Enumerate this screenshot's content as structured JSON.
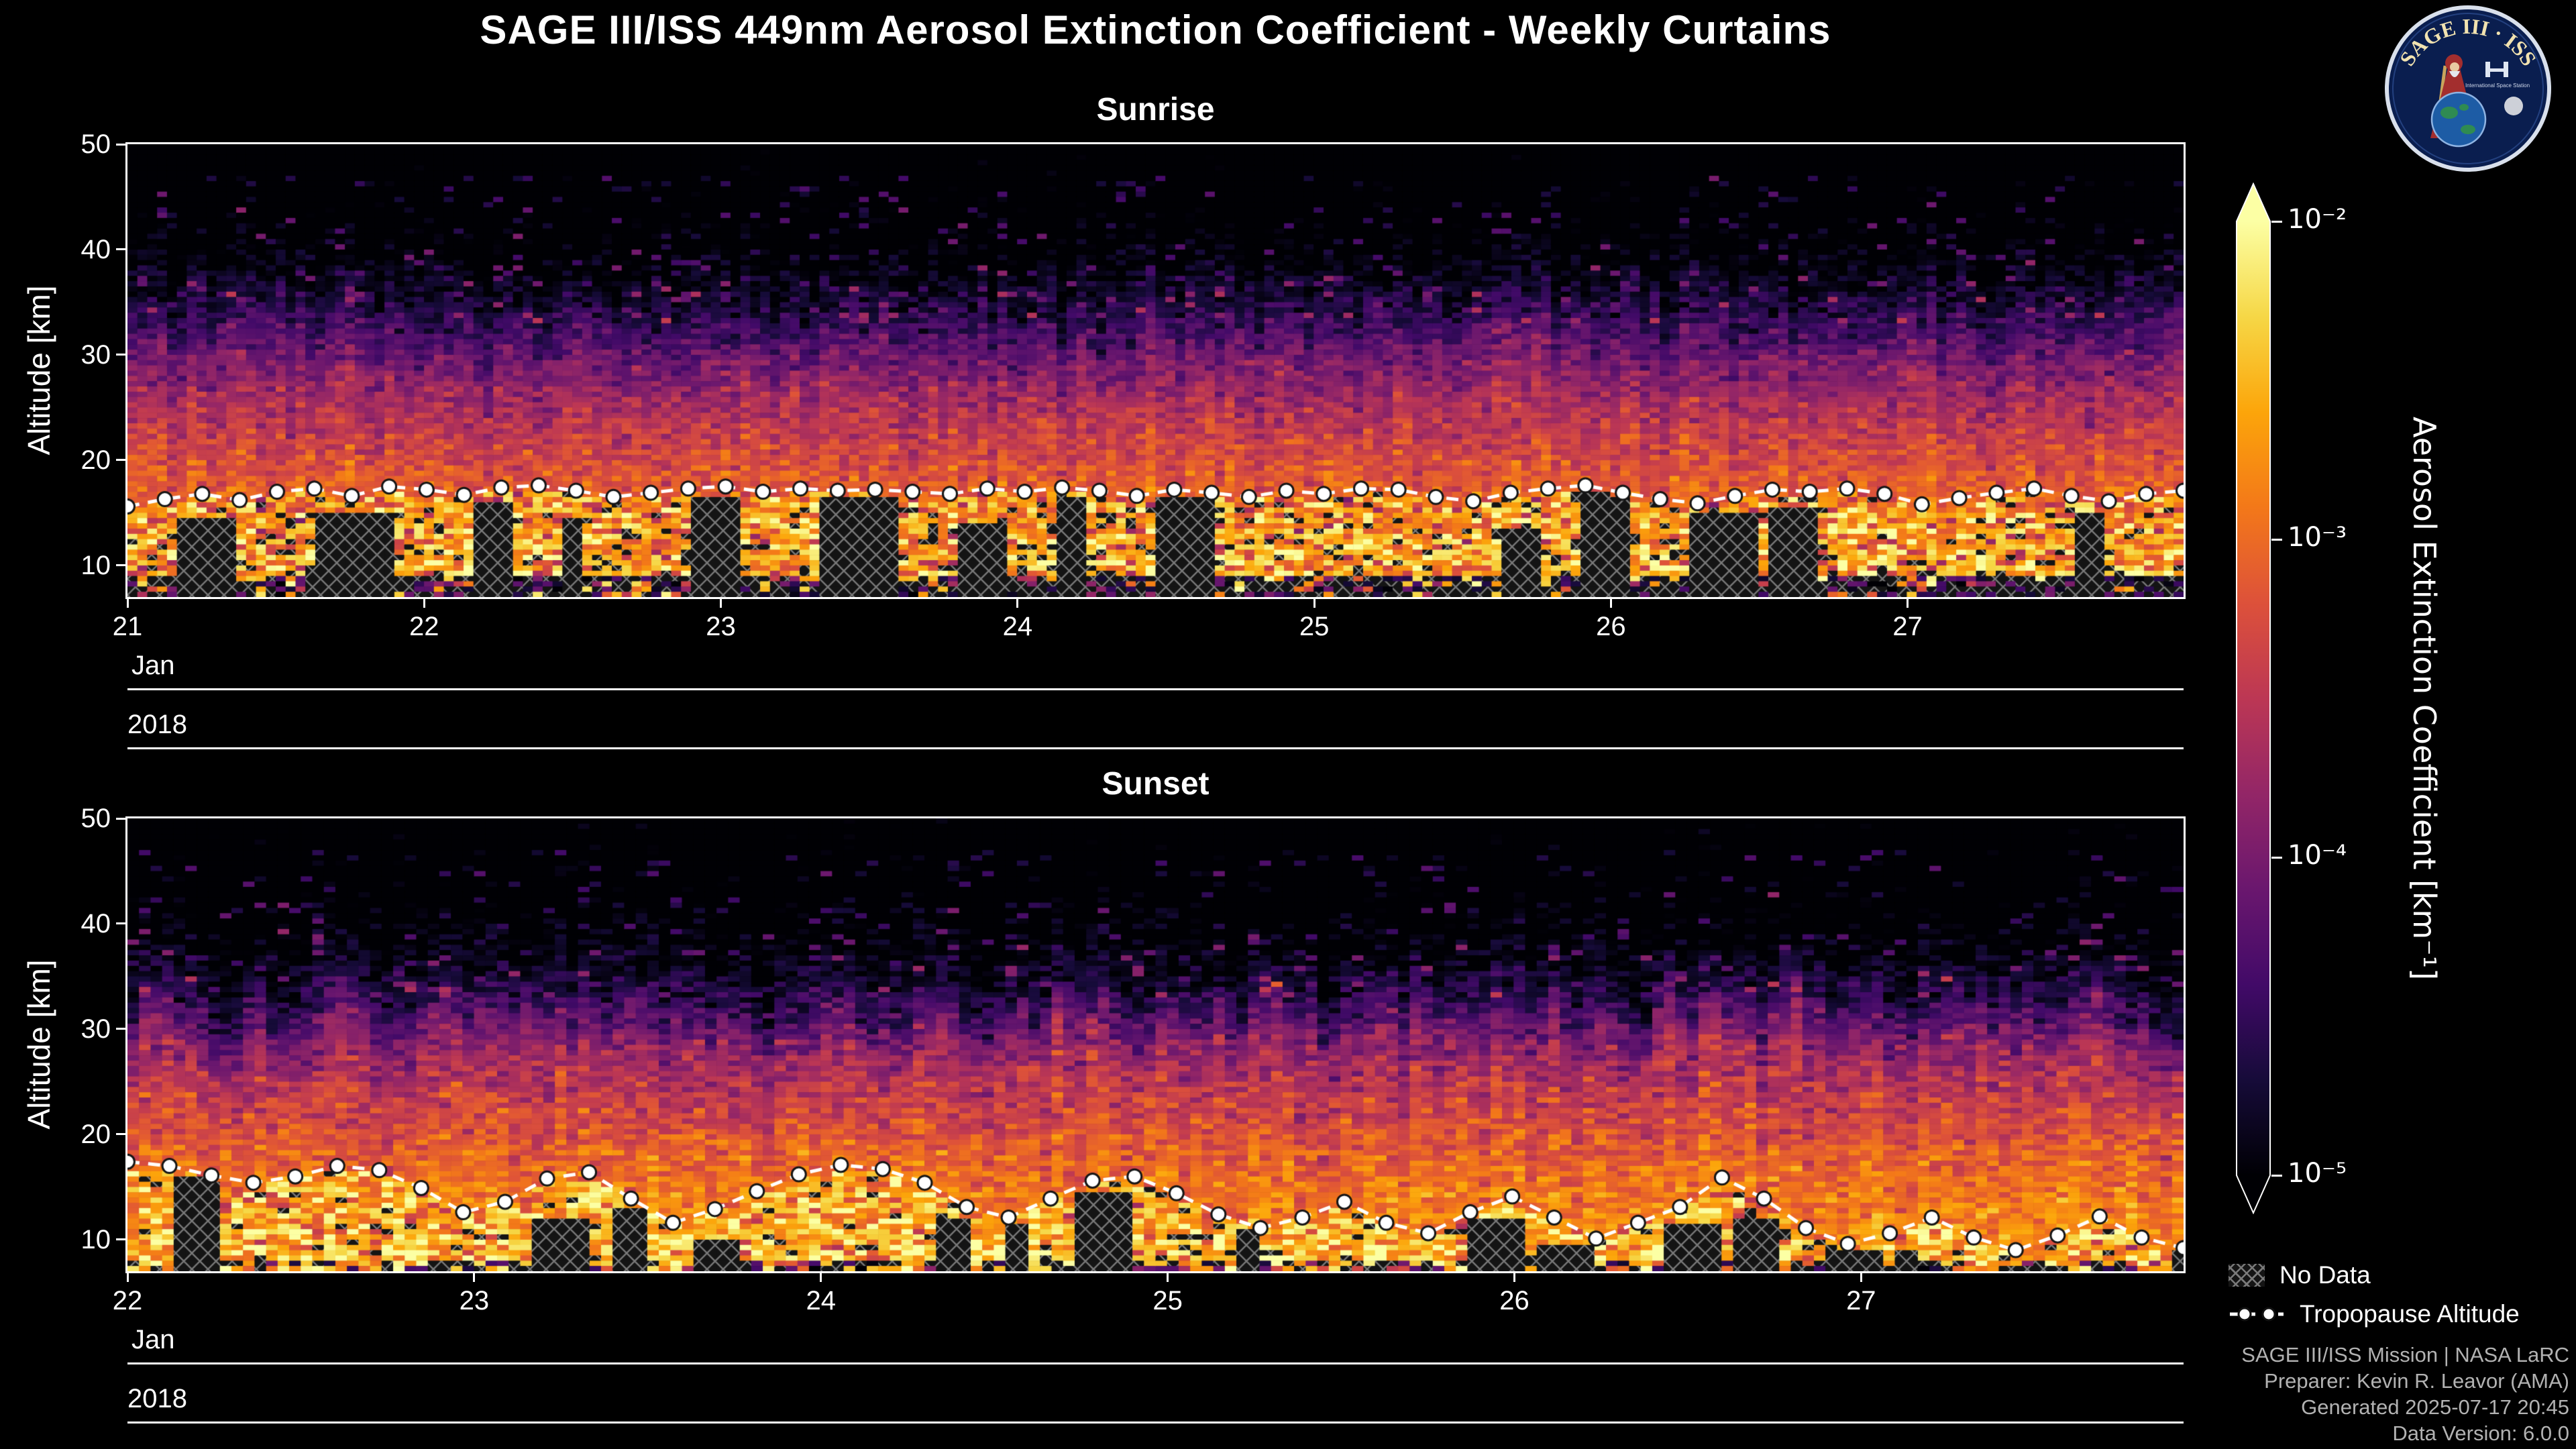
{
  "header": {
    "title": "SAGE III/ISS 449nm Aerosol Extinction Coefficient - Weekly Curtains"
  },
  "logo": {
    "title": "SAGE III · ISS",
    "subtitle": "International Space Station"
  },
  "colorbar": {
    "label": "Aerosol Extinction Coefficient [km⁻¹]",
    "ticks": [
      "10⁻²",
      "10⁻³",
      "10⁻⁴",
      "10⁻⁵"
    ],
    "tick_log10": [
      -2,
      -3,
      -4,
      -5
    ],
    "range_log10": [
      -5,
      -2
    ],
    "colormap": "inferno",
    "extend": "both"
  },
  "legend": {
    "no_data_label": "No Data",
    "tropopause_label": "Tropopause Altitude"
  },
  "footer": {
    "lines": [
      "SAGE III/ISS Mission | NASA LaRC",
      "Preparer: Kevin R. Leavor (AMA)",
      "Generated 2025-07-17 20:45",
      "Data Version: 6.0.0"
    ]
  },
  "chart_data": [
    {
      "type": "heatmap",
      "title": "Sunrise",
      "ylabel": "Altitude [km]",
      "y_range_km": [
        7,
        50
      ],
      "y_ticks": [
        10,
        20,
        30,
        40,
        50
      ],
      "x_range_days": [
        21,
        27.93
      ],
      "x_ticks": [
        21,
        22,
        23,
        24,
        25,
        26,
        27
      ],
      "month": "Jan",
      "year": "2018",
      "value_scale": "log10 aerosol extinction coefficient [km^-1], color range -5 to -2",
      "profile_log10_by_altitude_km": [
        [
          50,
          -5.45
        ],
        [
          44,
          -5.3
        ],
        [
          39,
          -5.05
        ],
        [
          35,
          -4.7
        ],
        [
          32,
          -4.35
        ],
        [
          30,
          -4.1
        ],
        [
          28,
          -3.9
        ],
        [
          25,
          -3.6
        ],
        [
          22,
          -3.4
        ],
        [
          19,
          -3.2
        ],
        [
          16,
          -3.05
        ],
        [
          12,
          -2.95
        ],
        [
          7,
          -2.9
        ]
      ],
      "tropopause_altitude_km": [
        15.6,
        16.3,
        16.8,
        16.2,
        17.0,
        17.3,
        16.6,
        17.5,
        17.2,
        16.7,
        17.4,
        17.6,
        17.1,
        16.5,
        16.9,
        17.3,
        17.5,
        17.0,
        17.3,
        17.1,
        17.2,
        17.0,
        16.8,
        17.3,
        17.0,
        17.4,
        17.1,
        16.6,
        17.2,
        16.9,
        16.5,
        17.1,
        16.8,
        17.3,
        17.2,
        16.5,
        16.1,
        16.9,
        17.3,
        17.6,
        16.9,
        16.3,
        15.9,
        16.6,
        17.2,
        17.0,
        17.3,
        16.8,
        15.8,
        16.4,
        16.9,
        17.3,
        16.6,
        16.1,
        16.8,
        17.1
      ],
      "render": {
        "seed": 1337,
        "columns_per_day": 30,
        "rows_per_km": 2,
        "noise_sigma": 0.18,
        "col_jitter_km": 1.4,
        "no_data_run_probability": 0.12,
        "no_data_run_length": [
          2,
          9
        ],
        "scatter_no_data": 0.1,
        "cloud_probability": 0.2,
        "cloud_log10": -2.45,
        "bottom": {
          "below_km": 9.0,
          "hatch_p": 0.45,
          "dark_p": 0.38
        }
      }
    },
    {
      "type": "heatmap",
      "title": "Sunset",
      "ylabel": "Altitude [km]",
      "y_range_km": [
        7,
        50
      ],
      "y_ticks": [
        10,
        20,
        30,
        40,
        50
      ],
      "x_range_days": [
        22,
        27.93
      ],
      "x_ticks": [
        22,
        23,
        24,
        25,
        26,
        27
      ],
      "month": "Jan",
      "year": "2018",
      "value_scale": "log10 aerosol extinction coefficient [km^-1], color range -5 to -2",
      "profile_log10_by_altitude_km": [
        [
          50,
          -5.45
        ],
        [
          42,
          -5.3
        ],
        [
          37,
          -5.0
        ],
        [
          33,
          -4.6
        ],
        [
          31,
          -4.3
        ],
        [
          29,
          -3.95
        ],
        [
          26,
          -3.65
        ],
        [
          22,
          -3.35
        ],
        [
          18,
          -3.1
        ],
        [
          14,
          -2.9
        ],
        [
          10,
          -2.75
        ],
        [
          7,
          -2.7
        ]
      ],
      "tropopause_altitude_km": [
        17.4,
        17.0,
        16.1,
        15.4,
        16.0,
        17.0,
        16.6,
        14.9,
        12.6,
        13.6,
        15.8,
        16.4,
        13.9,
        11.6,
        12.9,
        14.6,
        16.2,
        17.1,
        16.7,
        15.4,
        13.1,
        12.1,
        13.9,
        15.6,
        16.0,
        14.4,
        12.4,
        11.1,
        12.1,
        13.6,
        11.6,
        10.6,
        12.6,
        14.1,
        12.1,
        10.1,
        11.6,
        13.1,
        15.9,
        13.9,
        11.1,
        9.6,
        10.6,
        12.1,
        10.2,
        9.0,
        10.4,
        12.2,
        10.2,
        9.2
      ],
      "render": {
        "seed": 4242,
        "columns_per_day": 30,
        "rows_per_km": 2,
        "noise_sigma": 0.2,
        "col_jitter_km": 2.6,
        "no_data_run_probability": 0.09,
        "no_data_run_length": [
          2,
          6
        ],
        "scatter_no_data": 0.06,
        "cloud_probability": 0.12,
        "cloud_log10": -2.6,
        "bottom": {
          "below_km": 7.8,
          "hatch_p": 0.18,
          "dark_p": 0.2
        }
      }
    }
  ]
}
